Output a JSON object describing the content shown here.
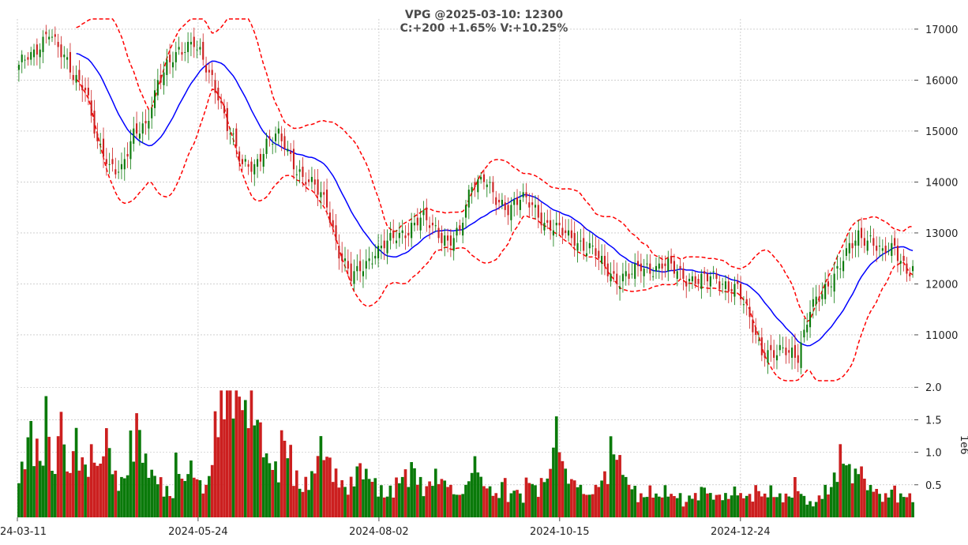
{
  "chart_data": {
    "type": "candlestick",
    "title_line1": "VPG @2025-03-10: 12300",
    "title_line2": "C:+200 +1.65% V:+10.25%",
    "price_axis": {
      "ylim": [
        10100,
        17200
      ],
      "ticks": [
        11000,
        12000,
        13000,
        14000,
        15000,
        16000,
        17000
      ]
    },
    "volume_axis": {
      "ylim": [
        0,
        2.1
      ],
      "ticks": [
        0.5,
        1.0,
        1.5,
        2.0
      ],
      "unit_label": "1e6"
    },
    "x_ticks": [
      "2024-03-11",
      "2024-05-24",
      "2024-08-02",
      "2024-10-15",
      "2024-12-24"
    ],
    "x_tick_labels": [
      "24-03-11",
      "2024-05-24",
      "2024-08-02",
      "2024-10-15",
      "2024-12-24"
    ],
    "close_anchors": [
      [
        0,
        16300
      ],
      [
        5,
        16500
      ],
      [
        10,
        17000
      ],
      [
        14,
        16500
      ],
      [
        18,
        16100
      ],
      [
        22,
        15900
      ],
      [
        26,
        14700
      ],
      [
        30,
        14300
      ],
      [
        34,
        14300
      ],
      [
        38,
        14900
      ],
      [
        42,
        15100
      ],
      [
        46,
        16000
      ],
      [
        50,
        16300
      ],
      [
        54,
        16600
      ],
      [
        58,
        16800
      ],
      [
        62,
        16200
      ],
      [
        66,
        15700
      ],
      [
        70,
        15000
      ],
      [
        74,
        14300
      ],
      [
        78,
        14300
      ],
      [
        82,
        14800
      ],
      [
        86,
        14900
      ],
      [
        90,
        14500
      ],
      [
        94,
        14100
      ],
      [
        98,
        13900
      ],
      [
        102,
        13600
      ],
      [
        106,
        12600
      ],
      [
        110,
        12100
      ],
      [
        114,
        12400
      ],
      [
        118,
        12600
      ],
      [
        122,
        12800
      ],
      [
        126,
        13000
      ],
      [
        130,
        13100
      ],
      [
        134,
        13300
      ],
      [
        138,
        13100
      ],
      [
        142,
        12800
      ],
      [
        146,
        13000
      ],
      [
        150,
        14000
      ],
      [
        154,
        14100
      ],
      [
        158,
        13600
      ],
      [
        162,
        13500
      ],
      [
        166,
        13700
      ],
      [
        170,
        13500
      ],
      [
        174,
        13200
      ],
      [
        178,
        13100
      ],
      [
        182,
        12900
      ],
      [
        186,
        12800
      ],
      [
        190,
        12700
      ],
      [
        194,
        12300
      ],
      [
        198,
        12100
      ],
      [
        202,
        12200
      ],
      [
        206,
        12300
      ],
      [
        210,
        12300
      ],
      [
        214,
        12400
      ],
      [
        218,
        12200
      ],
      [
        222,
        12100
      ],
      [
        226,
        12100
      ],
      [
        230,
        12100
      ],
      [
        234,
        12000
      ],
      [
        238,
        11900
      ],
      [
        242,
        11300
      ],
      [
        246,
        10700
      ],
      [
        250,
        10600
      ],
      [
        254,
        10700
      ],
      [
        258,
        10600
      ],
      [
        262,
        11500
      ],
      [
        266,
        11800
      ],
      [
        270,
        12200
      ],
      [
        274,
        12600
      ],
      [
        278,
        12900
      ],
      [
        282,
        12900
      ],
      [
        286,
        12600
      ],
      [
        290,
        12700
      ],
      [
        294,
        12300
      ],
      [
        296,
        12300
      ]
    ],
    "volume_profile": [
      0.7,
      1.2,
      1.0,
      0.8,
      1.5,
      0.6,
      1.3,
      0.6,
      1.1,
      0.8,
      0.7,
      0.9,
      0.7,
      1.1,
      0.6,
      0.5,
      0.6,
      1.1,
      1.3,
      0.8,
      0.6,
      0.5,
      0.4,
      0.3,
      0.8,
      0.5,
      0.7,
      0.5,
      0.4,
      0.7,
      1.4,
      1.6,
      1.8,
      1.9,
      1.5,
      1.7,
      1.4,
      1.2,
      0.8,
      0.7,
      1.1,
      0.9,
      0.6,
      0.4,
      0.5,
      0.6,
      1.0,
      0.8,
      0.6,
      0.5,
      0.4,
      0.5,
      0.7,
      0.6,
      0.5,
      0.4,
      0.3,
      0.4,
      0.5,
      0.6,
      0.7,
      0.5,
      0.4,
      0.5,
      0.6,
      0.5,
      0.4,
      0.3,
      0.4,
      0.6,
      0.8,
      0.5,
      0.4,
      0.3,
      0.5,
      0.3,
      0.4,
      0.3,
      0.5,
      0.4,
      0.5,
      0.6,
      1.3,
      0.9,
      0.6,
      0.5,
      0.4,
      0.3,
      0.4,
      0.5,
      0.6,
      1.0,
      0.8,
      0.5,
      0.4,
      0.3,
      0.3,
      0.4,
      0.3,
      0.4,
      0.3,
      0.3,
      0.2,
      0.3,
      0.3,
      0.4,
      0.3,
      0.3,
      0.3,
      0.3,
      0.4,
      0.3,
      0.3,
      0.4,
      0.3,
      0.4,
      0.3,
      0.3,
      0.3,
      0.5,
      0.3,
      0.2,
      0.2,
      0.3,
      0.4,
      0.6,
      0.9,
      0.7,
      0.6,
      0.7,
      0.5,
      0.4,
      0.3,
      0.3,
      0.4,
      0.3,
      0.3,
      0.3
    ],
    "colors": {
      "up": "#0a7a0a",
      "down": "#cc1f1f",
      "ma": "#0000ff",
      "bands": "#ff0000",
      "grid": "#b5b5b5",
      "title": "#4a4a4a"
    }
  }
}
